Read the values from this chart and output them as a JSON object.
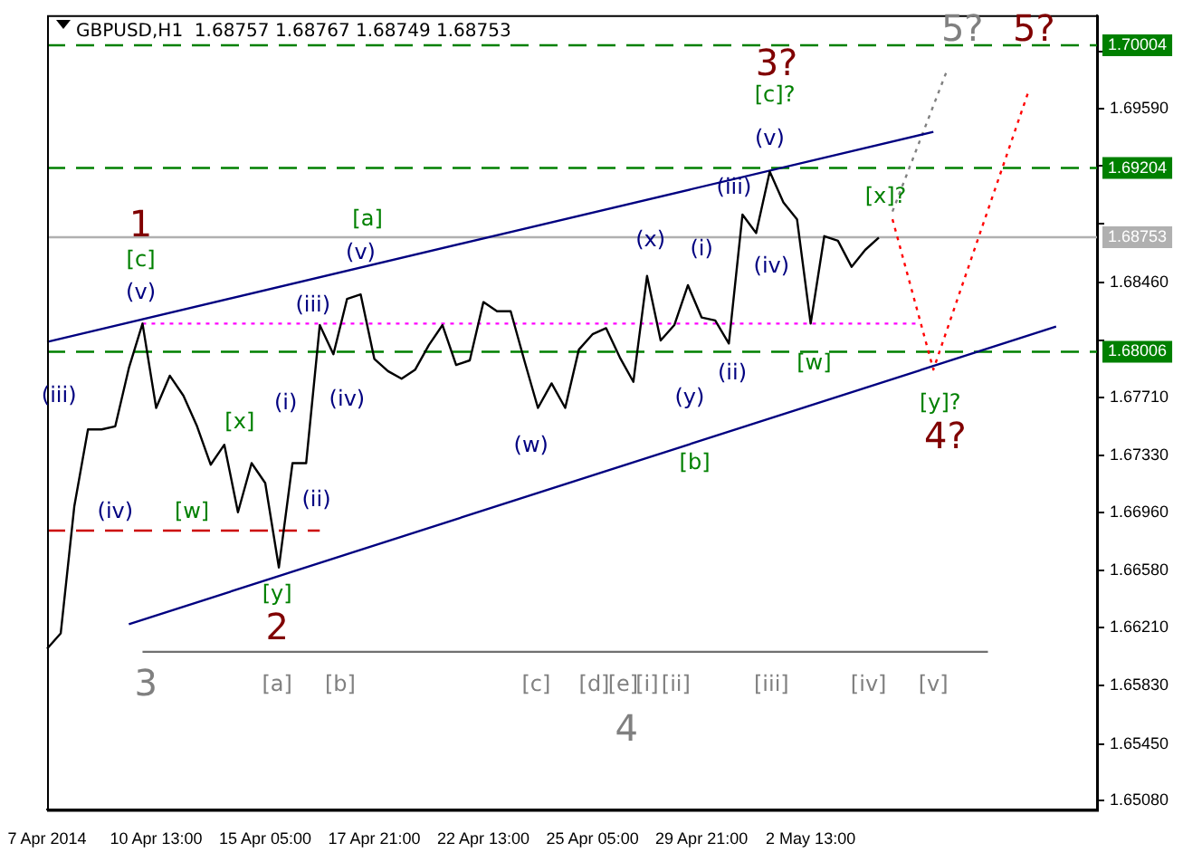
{
  "chart_data": {
    "type": "line",
    "title": "GBPUSD,H1  1.68757 1.68767 1.68749 1.68753",
    "categories": [
      "7 Apr 2014",
      null,
      null,
      null,
      null,
      null,
      null,
      null,
      "10 Apr 13:00",
      null,
      null,
      null,
      null,
      null,
      null,
      null,
      "15 Apr 05:00",
      null,
      null,
      null,
      null,
      null,
      null,
      null,
      "17 Apr 21:00",
      null,
      null,
      null,
      null,
      null,
      null,
      null,
      "22 Apr 13:00",
      null,
      null,
      null,
      null,
      null,
      null,
      null,
      "25 Apr 05:00",
      null,
      null,
      null,
      null,
      null,
      null,
      null,
      "29 Apr 21:00",
      null,
      null,
      null,
      null,
      null,
      null,
      null,
      "2 May 13:00",
      null,
      null,
      null,
      null,
      null,
      null,
      null,
      null,
      null,
      null,
      null,
      null,
      null,
      null,
      null,
      null,
      null,
      null,
      null,
      null,
      null
    ],
    "ylim": [
      1.6502,
      1.702
    ],
    "yticks": [
      {
        "value": 1.6508,
        "label": "1.65080"
      },
      {
        "value": 1.6545,
        "label": "1.65450"
      },
      {
        "value": 1.6583,
        "label": "1.65830"
      },
      {
        "value": 1.6621,
        "label": "1.66210"
      },
      {
        "value": 1.6658,
        "label": "1.66580"
      },
      {
        "value": 1.6696,
        "label": "1.66960"
      },
      {
        "value": 1.6733,
        "label": "1.67330"
      },
      {
        "value": 1.6771,
        "label": "1.67710"
      },
      {
        "value": 1.6808,
        "label": null
      },
      {
        "value": 1.6846,
        "label": "1.68460"
      },
      {
        "value": 1.6884,
        "label": null
      },
      {
        "value": 1.6922,
        "label": null
      },
      {
        "value": 1.6959,
        "label": "1.69590"
      },
      {
        "value": 1.6996,
        "label": null
      }
    ],
    "grid": false,
    "legend": false,
    "marker": "none",
    "series": [
      {
        "color": "#000000",
        "values": [
          1.6607,
          1.6617,
          1.67,
          1.675,
          1.675,
          1.6752,
          1.679,
          1.6819,
          1.6764,
          1.6785,
          1.6772,
          1.6752,
          1.6727,
          1.674,
          1.6696,
          1.6728,
          1.6715,
          1.666,
          1.6728,
          1.6728,
          1.6818,
          1.6799,
          1.6835,
          1.6838,
          1.6796,
          1.6788,
          1.6783,
          1.6789,
          1.6805,
          1.6818,
          1.6792,
          1.6795,
          1.6833,
          1.6827,
          1.6827,
          1.6795,
          1.6764,
          1.678,
          1.6764,
          1.6802,
          1.6812,
          1.6816,
          1.6797,
          1.6781,
          1.685,
          1.6808,
          1.6818,
          1.6844,
          1.6823,
          1.6821,
          1.6806,
          1.689,
          1.6878,
          1.6918,
          1.6898,
          1.6887,
          1.6819,
          1.6876,
          1.6873,
          1.6856,
          1.6867,
          1.6875,
          null,
          null,
          null,
          null,
          null,
          null,
          null,
          null,
          null,
          null,
          null,
          null,
          null,
          null,
          null,
          null
        ]
      },
      {
        "color": "#000080",
        "values": [
          1.6807,
          null,
          null,
          null,
          null,
          null,
          null,
          null,
          null,
          null,
          null,
          null,
          null,
          null,
          null,
          null,
          null,
          null,
          null,
          null,
          null,
          null,
          null,
          null,
          null,
          null,
          null,
          null,
          null,
          null,
          null,
          null,
          null,
          null,
          null,
          null,
          null,
          null,
          null,
          null,
          null,
          null,
          null,
          null,
          null,
          null,
          null,
          null,
          null,
          null,
          null,
          null,
          null,
          null,
          null,
          null,
          null,
          null,
          null,
          null,
          null,
          null,
          null,
          null,
          null,
          1.6944,
          null,
          null,
          null,
          null,
          null,
          null,
          null,
          null,
          null,
          null,
          null,
          null
        ]
      },
      {
        "color": "#000080",
        "values": [
          null,
          null,
          null,
          null,
          null,
          null,
          1.6623,
          null,
          null,
          null,
          null,
          null,
          null,
          null,
          null,
          null,
          null,
          null,
          null,
          null,
          null,
          null,
          null,
          null,
          null,
          null,
          null,
          null,
          null,
          null,
          null,
          null,
          null,
          null,
          null,
          null,
          null,
          null,
          null,
          null,
          null,
          null,
          null,
          null,
          null,
          null,
          null,
          null,
          null,
          null,
          null,
          null,
          null,
          null,
          null,
          null,
          null,
          null,
          null,
          null,
          null,
          null,
          null,
          null,
          null,
          null,
          null,
          null,
          null,
          null,
          null,
          null,
          null,
          null,
          1.6817,
          null,
          null,
          null
        ]
      },
      {
        "color": "#ff00ff",
        "line_style": "dotted",
        "values": [
          null,
          null,
          null,
          null,
          null,
          null,
          null,
          1.6819,
          null,
          null,
          null,
          null,
          null,
          null,
          null,
          null,
          null,
          null,
          null,
          null,
          null,
          null,
          null,
          null,
          null,
          null,
          null,
          null,
          null,
          null,
          null,
          null,
          null,
          null,
          null,
          null,
          null,
          null,
          null,
          null,
          null,
          null,
          null,
          null,
          null,
          null,
          null,
          null,
          null,
          null,
          null,
          null,
          null,
          null,
          null,
          null,
          null,
          null,
          null,
          null,
          null,
          null,
          null,
          null,
          1.6819,
          null,
          null,
          null,
          null,
          null,
          null,
          null,
          null,
          null,
          null,
          null,
          null,
          null
        ]
      },
      {
        "color": "#cc0000",
        "line_style": "dashed",
        "values": [
          1.6684,
          null,
          null,
          null,
          null,
          null,
          null,
          null,
          null,
          null,
          null,
          null,
          null,
          null,
          null,
          null,
          null,
          null,
          null,
          null,
          1.6684,
          null,
          null,
          null,
          null,
          null,
          null,
          null,
          null,
          null,
          null,
          null,
          null,
          null,
          null,
          null,
          null,
          null,
          null,
          null,
          null,
          null,
          null,
          null,
          null,
          null,
          null,
          null,
          null,
          null,
          null,
          null,
          null,
          null,
          null,
          null,
          null,
          null,
          null,
          null,
          null,
          null,
          null,
          null,
          null,
          null,
          null,
          null,
          null,
          null,
          null,
          null,
          null,
          null,
          null,
          null,
          null,
          null
        ]
      },
      {
        "color": "#ff0000",
        "line_style": "dotted",
        "values": [
          null,
          null,
          null,
          null,
          null,
          null,
          null,
          null,
          null,
          null,
          null,
          null,
          null,
          null,
          null,
          null,
          null,
          null,
          null,
          null,
          null,
          null,
          null,
          null,
          null,
          null,
          null,
          null,
          null,
          null,
          null,
          null,
          null,
          null,
          null,
          null,
          null,
          null,
          null,
          null,
          null,
          null,
          null,
          null,
          null,
          null,
          null,
          null,
          null,
          null,
          null,
          null,
          null,
          null,
          null,
          null,
          null,
          null,
          null,
          null,
          null,
          null,
          1.6887,
          null,
          null,
          1.6789,
          null,
          null,
          null,
          null,
          null,
          null,
          1.6971,
          null,
          null,
          null,
          null,
          null
        ]
      },
      {
        "color": "#808080",
        "line_style": "dotted",
        "values": [
          null,
          null,
          null,
          null,
          null,
          null,
          null,
          null,
          null,
          null,
          null,
          null,
          null,
          null,
          null,
          null,
          null,
          null,
          null,
          null,
          null,
          null,
          null,
          null,
          null,
          null,
          null,
          null,
          null,
          null,
          null,
          null,
          null,
          null,
          null,
          null,
          null,
          null,
          null,
          null,
          null,
          null,
          null,
          null,
          null,
          null,
          null,
          null,
          null,
          null,
          null,
          null,
          null,
          null,
          null,
          null,
          null,
          null,
          null,
          null,
          null,
          null,
          1.6892,
          null,
          null,
          null,
          1.6984,
          null,
          null,
          null,
          null,
          null,
          null,
          null,
          null,
          null,
          null,
          null
        ]
      },
      {
        "color": "#707070",
        "values": [
          null,
          null,
          null,
          null,
          null,
          null,
          null,
          1.6605,
          null,
          null,
          null,
          null,
          null,
          null,
          null,
          null,
          null,
          null,
          null,
          null,
          null,
          null,
          null,
          null,
          null,
          null,
          null,
          null,
          null,
          null,
          null,
          null,
          null,
          null,
          null,
          null,
          null,
          null,
          null,
          null,
          null,
          null,
          null,
          null,
          null,
          null,
          null,
          null,
          null,
          null,
          null,
          null,
          null,
          null,
          null,
          null,
          null,
          null,
          null,
          null,
          null,
          null,
          null,
          null,
          null,
          null,
          null,
          null,
          null,
          1.6605,
          null,
          null,
          null,
          null,
          null,
          null,
          null,
          null
        ]
      }
    ],
    "ref_lines": [
      {
        "axis": "y",
        "value": 1.70004,
        "label": "1.70004",
        "color": "#008000",
        "line_style": "dashed"
      },
      {
        "axis": "y",
        "value": 1.69204,
        "label": "1.69204",
        "color": "#008000",
        "line_style": "dashed"
      },
      {
        "axis": "y",
        "value": 1.68006,
        "label": "1.68006",
        "color": "#008000",
        "line_style": "dashed"
      },
      {
        "axis": "y",
        "value": 1.68753,
        "label": "1.68753",
        "color": "#b0b0b0",
        "line_style": "solid"
      }
    ],
    "annotations": [
      "1",
      "2",
      "3?",
      "4?",
      "5?",
      "5?",
      "3",
      "4",
      "[c]",
      "[a]",
      "[x]",
      "[w]",
      "[y]",
      "[c]?",
      "[x]?",
      "[w]",
      "[y]?",
      "[b]",
      "(v)",
      "(iii)",
      "(iv)",
      "(i)",
      "(ii)",
      "(iii)",
      "(iv)",
      "(v)",
      "(w)",
      "(x)",
      "(i)",
      "(y)",
      "(ii)",
      "(iii)",
      "(iv)",
      "(v)",
      "[a]",
      "[b]",
      "[c]",
      "[d]",
      "[e]",
      "[i]",
      "[ii]",
      "[iii]",
      "[iv]",
      "[v]"
    ]
  }
}
